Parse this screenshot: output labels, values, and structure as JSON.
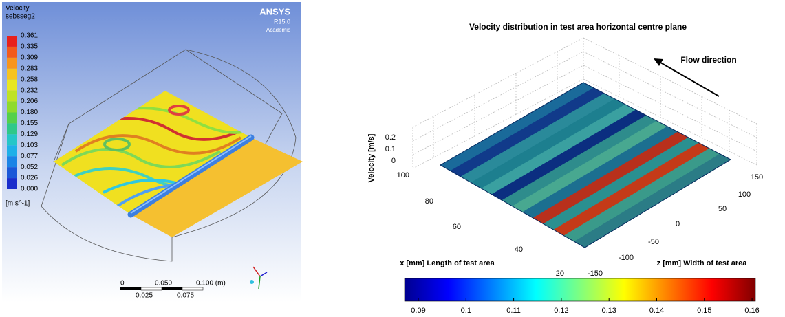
{
  "left_panel": {
    "legend_title": "Velocity",
    "legend_variable": "sebsseg2",
    "legend_levels": [
      "0.361",
      "0.335",
      "0.309",
      "0.283",
      "0.258",
      "0.232",
      "0.206",
      "0.180",
      "0.155",
      "0.129",
      "0.103",
      "0.077",
      "0.052",
      "0.026",
      "0.000"
    ],
    "legend_units": "[m s^-1]",
    "brand": "ANSYS",
    "version": "R15.0",
    "edition": "Academic",
    "scale_labels_top": [
      "0",
      "0.050",
      "0.100 (m)"
    ],
    "scale_labels_bottom": [
      "0.025",
      "0.075"
    ]
  },
  "right_panel": {
    "title": "Velocity distribution in test area horizontal centre plane",
    "annotation": "Flow direction",
    "velocity_axis_label": "Velocity [m/s]",
    "velocity_ticks": [
      0.2,
      0.1,
      0
    ],
    "x_axis_label": "x [mm] Length of test area",
    "x_ticks": [
      100,
      80,
      60,
      40,
      20
    ],
    "z_axis_label": "z [mm] Width of test area",
    "z_ticks": [
      150,
      100,
      50,
      0,
      -50,
      -100,
      -150
    ],
    "colorbar_ticks": [
      0.09,
      0.1,
      0.11,
      0.12,
      0.13,
      0.14,
      0.15,
      0.16
    ]
  }
}
